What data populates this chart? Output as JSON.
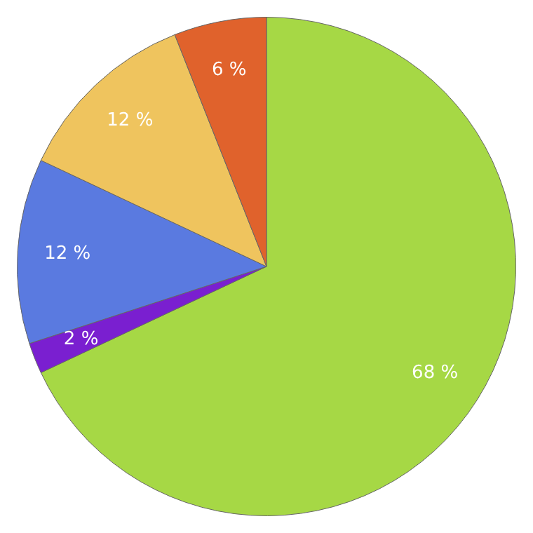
{
  "chart_data": {
    "type": "pie",
    "categories": [
      null,
      null,
      null,
      null,
      null
    ],
    "values": [
      68,
      2,
      12,
      12,
      6
    ],
    "colors": [
      "#a6d845",
      "#7a1fd0",
      "#5a7ae0",
      "#efc45e",
      "#e0622c"
    ],
    "value_labels": [
      "68 %",
      "2 %",
      "12 %",
      "12 %",
      "6 %"
    ]
  }
}
